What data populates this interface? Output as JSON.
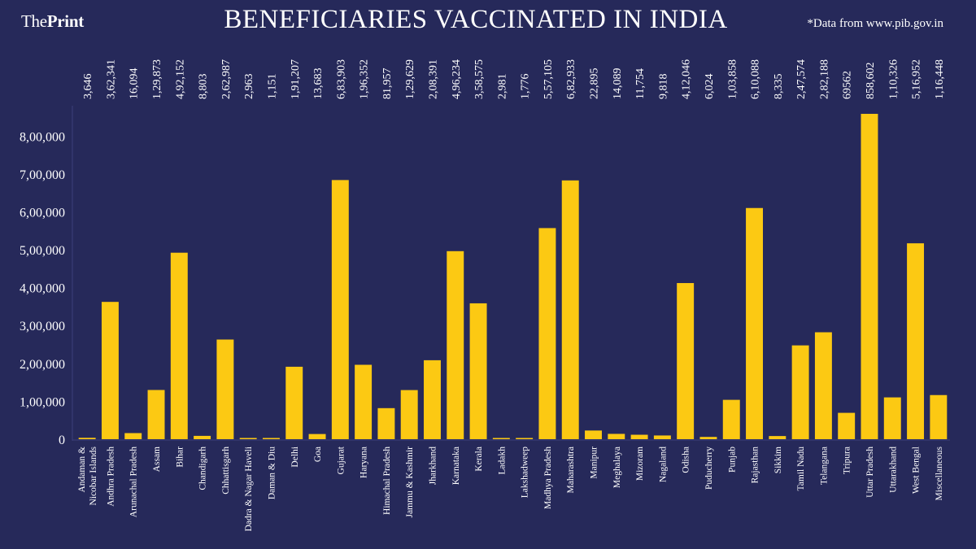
{
  "header": {
    "logo_part1": "The",
    "logo_part2": "Print",
    "title": "BENEFICIARIES VACCINATED IN INDIA",
    "source": "*Data from www.pib.gov.in"
  },
  "colors": {
    "background": "#26295a",
    "bar": "#fcc913",
    "text": "#ffffff",
    "grid": "#3c407a"
  },
  "chart_data": {
    "type": "bar",
    "title": "BENEFICIARIES VACCINATED IN INDIA",
    "xlabel": "",
    "ylabel": "",
    "ylim": [
      0,
      880000
    ],
    "yticks": [
      0,
      100000,
      200000,
      300000,
      400000,
      500000,
      600000,
      700000,
      800000
    ],
    "ytick_labels": [
      "0",
      "1,00,000",
      "2,00,000",
      "3,00,000",
      "4,00,000",
      "5,00,000",
      "6,00,000",
      "7,00,000",
      "8,00,000"
    ],
    "grid": false,
    "categories": [
      "Andaman & Nicobar Islands",
      "Andhra Pradesh",
      "Arunachal Pradesh",
      "Assam",
      "Bihar",
      "Chandigarh",
      "Chhattisgarh",
      "Dadra & Nagar Haveli",
      "Daman & Diu",
      "Delhi",
      "Goa",
      "Gujarat",
      "Haryana",
      "Himachal Pradesh",
      "Jammu & Kashmir",
      "Jharkhand",
      "Karnataka",
      "Kerala",
      "Ladakh",
      "Lakshadweep",
      "Madhya Pradesh",
      "Maharashtra",
      "Manipur",
      "Meghalaya",
      "Mizoram",
      "Nagaland",
      "Odisha",
      "Puducherry",
      "Punjab",
      "Rajasthan",
      "Sikkim",
      "Tamil Nadu",
      "Telangana",
      "Tripura",
      "Uttar Pradesh",
      "Uttarakhand",
      "West Bengal",
      "Miscellaneous"
    ],
    "values": [
      3646,
      362341,
      16094,
      129873,
      492152,
      8803,
      262987,
      2963,
      1151,
      191207,
      13683,
      683903,
      196352,
      81957,
      129629,
      208391,
      496234,
      358575,
      2981,
      1776,
      557105,
      682933,
      22895,
      14089,
      11754,
      9818,
      412046,
      6024,
      103858,
      610088,
      8335,
      247574,
      282188,
      69562,
      858602,
      110326,
      516952,
      116448
    ],
    "value_labels": [
      "3,646",
      "3,62,341",
      "16,094",
      "1,29,873",
      "4,92,152",
      "8,803",
      "2,62,987",
      "2,963",
      "1,151",
      "1,91,207",
      "13,683",
      "6,83,903",
      "1,96,352",
      "81,957",
      "1,29,629",
      "2,08,391",
      "4,96,234",
      "3,58,575",
      "2,981",
      "1,776",
      "5,57,105",
      "6,82,933",
      "22,895",
      "14,089",
      "11,754",
      "9,818",
      "4,12,046",
      "6,024",
      "1,03,858",
      "6,10,088",
      "8,335",
      "2,47,574",
      "2,82,188",
      "69562",
      "858,602",
      "1,10,326",
      "5,16,952",
      "1,16,448"
    ]
  }
}
